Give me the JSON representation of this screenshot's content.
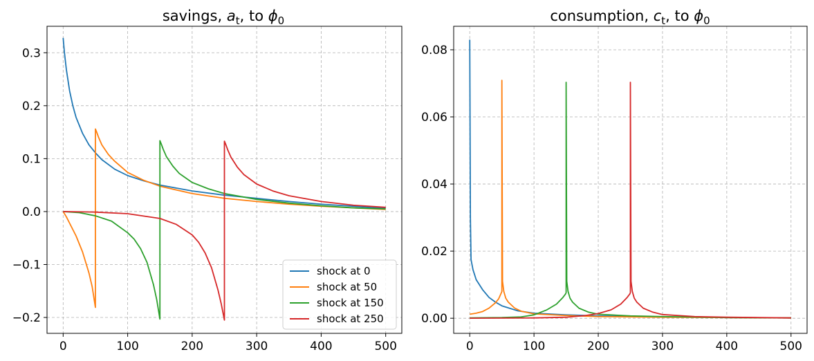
{
  "chart_data": [
    {
      "type": "line",
      "title": {
        "prefix": "savings, ",
        "var": "a",
        "sub": "t",
        "mid": ", to ",
        "sym": "ϕ",
        "symsub": "0"
      },
      "xlim": [
        -25,
        525
      ],
      "ylim": [
        -0.23,
        0.35
      ],
      "xticks": [
        0,
        100,
        200,
        300,
        400,
        500
      ],
      "xtick_labels": [
        "0",
        "100",
        "200",
        "300",
        "400",
        "500"
      ],
      "yticks": [
        -0.2,
        -0.1,
        0.0,
        0.1,
        0.2,
        0.3
      ],
      "ytick_labels": [
        "−0.2",
        "−0.1",
        "0.0",
        "0.1",
        "0.2",
        "0.3"
      ],
      "grid": true,
      "legend": "lower-right",
      "series": [
        {
          "name": "shock at 0",
          "color": "#1f77b4",
          "points": [
            [
              0,
              0.328
            ],
            [
              2,
              0.3
            ],
            [
              5,
              0.268
            ],
            [
              10,
              0.228
            ],
            [
              15,
              0.2
            ],
            [
              20,
              0.178
            ],
            [
              30,
              0.148
            ],
            [
              40,
              0.126
            ],
            [
              50,
              0.111
            ],
            [
              60,
              0.098
            ],
            [
              80,
              0.08
            ],
            [
              100,
              0.068
            ],
            [
              125,
              0.058
            ],
            [
              150,
              0.05
            ],
            [
              200,
              0.039
            ],
            [
              250,
              0.031
            ],
            [
              300,
              0.025
            ],
            [
              350,
              0.019
            ],
            [
              400,
              0.014
            ],
            [
              450,
              0.01
            ],
            [
              500,
              0.006
            ]
          ]
        },
        {
          "name": "shock at 50",
          "color": "#ff7f0e",
          "points": [
            [
              0,
              0.0
            ],
            [
              5,
              -0.01
            ],
            [
              10,
              -0.022
            ],
            [
              20,
              -0.046
            ],
            [
              30,
              -0.076
            ],
            [
              40,
              -0.116
            ],
            [
              45,
              -0.142
            ],
            [
              50,
              -0.181
            ],
            [
              50,
              0.156
            ],
            [
              52,
              0.15
            ],
            [
              55,
              0.14
            ],
            [
              60,
              0.126
            ],
            [
              70,
              0.108
            ],
            [
              80,
              0.095
            ],
            [
              100,
              0.074
            ],
            [
              125,
              0.059
            ],
            [
              150,
              0.048
            ],
            [
              200,
              0.034
            ],
            [
              250,
              0.025
            ],
            [
              300,
              0.019
            ],
            [
              350,
              0.014
            ],
            [
              400,
              0.01
            ],
            [
              450,
              0.007
            ],
            [
              500,
              0.004
            ]
          ]
        },
        {
          "name": "shock at 150",
          "color": "#2ca02c",
          "points": [
            [
              0,
              0.0
            ],
            [
              25,
              -0.002
            ],
            [
              50,
              -0.008
            ],
            [
              75,
              -0.018
            ],
            [
              100,
              -0.04
            ],
            [
              110,
              -0.052
            ],
            [
              120,
              -0.07
            ],
            [
              130,
              -0.096
            ],
            [
              140,
              -0.138
            ],
            [
              145,
              -0.166
            ],
            [
              150,
              -0.203
            ],
            [
              150,
              0.134
            ],
            [
              152,
              0.128
            ],
            [
              155,
              0.118
            ],
            [
              160,
              0.104
            ],
            [
              170,
              0.086
            ],
            [
              180,
              0.072
            ],
            [
              200,
              0.055
            ],
            [
              225,
              0.043
            ],
            [
              250,
              0.034
            ],
            [
              300,
              0.023
            ],
            [
              350,
              0.016
            ],
            [
              400,
              0.011
            ],
            [
              450,
              0.007
            ],
            [
              500,
              0.005
            ]
          ]
        },
        {
          "name": "shock at 250",
          "color": "#d62728",
          "points": [
            [
              0,
              0.0
            ],
            [
              50,
              -0.001
            ],
            [
              100,
              -0.004
            ],
            [
              150,
              -0.013
            ],
            [
              175,
              -0.024
            ],
            [
              200,
              -0.044
            ],
            [
              210,
              -0.058
            ],
            [
              220,
              -0.078
            ],
            [
              230,
              -0.106
            ],
            [
              240,
              -0.148
            ],
            [
              245,
              -0.174
            ],
            [
              250,
              -0.205
            ],
            [
              250,
              0.133
            ],
            [
              252,
              0.127
            ],
            [
              255,
              0.117
            ],
            [
              260,
              0.103
            ],
            [
              270,
              0.084
            ],
            [
              280,
              0.07
            ],
            [
              300,
              0.052
            ],
            [
              325,
              0.039
            ],
            [
              350,
              0.03
            ],
            [
              400,
              0.019
            ],
            [
              450,
              0.012
            ],
            [
              500,
              0.008
            ]
          ]
        }
      ]
    },
    {
      "type": "line",
      "title": {
        "prefix": "consumption, ",
        "var": "c",
        "sub": "t",
        "mid": ", to ",
        "sym": "ϕ",
        "symsub": "0"
      },
      "xlim": [
        -25,
        525
      ],
      "ylim": [
        -0.0045,
        0.087
      ],
      "xticks": [
        0,
        100,
        200,
        300,
        400,
        500
      ],
      "xtick_labels": [
        "0",
        "100",
        "200",
        "300",
        "400",
        "500"
      ],
      "yticks": [
        0.0,
        0.02,
        0.04,
        0.06,
        0.08
      ],
      "ytick_labels": [
        "0.00",
        "0.02",
        "0.04",
        "0.06",
        "0.08"
      ],
      "grid": true,
      "series": [
        {
          "name": "shock at 0",
          "color": "#1f77b4",
          "points": [
            [
              0,
              0.083
            ],
            [
              1,
              0.03
            ],
            [
              2,
              0.0175
            ],
            [
              5,
              0.0145
            ],
            [
              10,
              0.0115
            ],
            [
              20,
              0.0085
            ],
            [
              30,
              0.0062
            ],
            [
              40,
              0.0048
            ],
            [
              50,
              0.0037
            ],
            [
              75,
              0.0022
            ],
            [
              100,
              0.0015
            ],
            [
              150,
              0.001
            ],
            [
              200,
              0.0007
            ],
            [
              300,
              0.0004
            ],
            [
              400,
              0.0002
            ],
            [
              500,
              0.0001
            ]
          ]
        },
        {
          "name": "shock at 50",
          "color": "#ff7f0e",
          "points": [
            [
              0,
              0.0012
            ],
            [
              10,
              0.0015
            ],
            [
              20,
              0.002
            ],
            [
              30,
              0.003
            ],
            [
              40,
              0.0046
            ],
            [
              45,
              0.0058
            ],
            [
              49,
              0.0075
            ],
            [
              50,
              0.008
            ],
            [
              50,
              0.0709
            ],
            [
              51,
              0.011
            ],
            [
              53,
              0.008
            ],
            [
              56,
              0.006
            ],
            [
              60,
              0.0048
            ],
            [
              70,
              0.003
            ],
            [
              80,
              0.0021
            ],
            [
              100,
              0.0013
            ],
            [
              150,
              0.0008
            ],
            [
              200,
              0.0005
            ],
            [
              300,
              0.0003
            ],
            [
              400,
              0.0002
            ],
            [
              500,
              0.0001
            ]
          ]
        },
        {
          "name": "shock at 150",
          "color": "#2ca02c",
          "points": [
            [
              0,
              0.0001
            ],
            [
              50,
              0.0002
            ],
            [
              80,
              0.0004
            ],
            [
              100,
              0.001
            ],
            [
              120,
              0.0025
            ],
            [
              135,
              0.0042
            ],
            [
              145,
              0.0062
            ],
            [
              149,
              0.0072
            ],
            [
              150,
              0.0076
            ],
            [
              150,
              0.0703
            ],
            [
              151,
              0.011
            ],
            [
              153,
              0.008
            ],
            [
              156,
              0.006
            ],
            [
              160,
              0.0048
            ],
            [
              170,
              0.003
            ],
            [
              185,
              0.0018
            ],
            [
              200,
              0.0012
            ],
            [
              250,
              0.0007
            ],
            [
              300,
              0.0005
            ],
            [
              400,
              0.0002
            ],
            [
              500,
              0.0001
            ]
          ]
        },
        {
          "name": "shock at 250",
          "color": "#d62728",
          "points": [
            [
              0,
              0.0
            ],
            [
              100,
              0.0001
            ],
            [
              150,
              0.0003
            ],
            [
              180,
              0.0008
            ],
            [
              200,
              0.0014
            ],
            [
              220,
              0.0025
            ],
            [
              235,
              0.0042
            ],
            [
              245,
              0.0062
            ],
            [
              249,
              0.0072
            ],
            [
              250,
              0.0076
            ],
            [
              250,
              0.0703
            ],
            [
              251,
              0.011
            ],
            [
              253,
              0.008
            ],
            [
              256,
              0.006
            ],
            [
              260,
              0.0048
            ],
            [
              270,
              0.003
            ],
            [
              285,
              0.0018
            ],
            [
              300,
              0.0011
            ],
            [
              350,
              0.0005
            ],
            [
              400,
              0.0003
            ],
            [
              500,
              0.0001
            ]
          ]
        }
      ]
    }
  ]
}
